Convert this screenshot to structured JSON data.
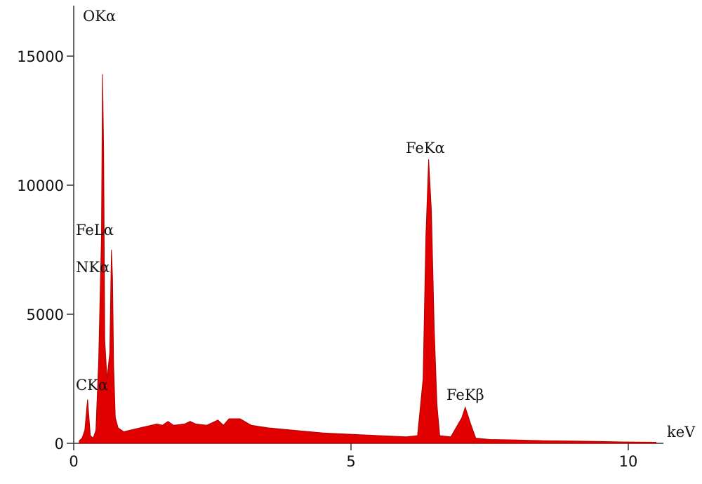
{
  "chart_data": {
    "type": "area",
    "color": "#e00000",
    "x": [
      0.1,
      0.15,
      0.2,
      0.25,
      0.3,
      0.35,
      0.4,
      0.45,
      0.5,
      0.52,
      0.54,
      0.56,
      0.6,
      0.65,
      0.68,
      0.7,
      0.72,
      0.75,
      0.8,
      0.9,
      1.0,
      1.2,
      1.4,
      1.5,
      1.6,
      1.7,
      1.8,
      2.0,
      2.1,
      2.2,
      2.4,
      2.6,
      2.7,
      2.8,
      3.0,
      3.2,
      3.5,
      4.0,
      4.5,
      5.0,
      5.5,
      6.0,
      6.2,
      6.3,
      6.35,
      6.4,
      6.45,
      6.5,
      6.55,
      6.6,
      6.8,
      7.0,
      7.06,
      7.15,
      7.25,
      7.5,
      8.0,
      8.5,
      9.0,
      9.5,
      10.0,
      10.5
    ],
    "values": [
      100,
      200,
      500,
      1700,
      300,
      200,
      500,
      3200,
      8000,
      14300,
      11300,
      4000,
      2500,
      3500,
      7500,
      6400,
      3000,
      1000,
      600,
      450,
      500,
      600,
      700,
      750,
      700,
      850,
      700,
      750,
      850,
      750,
      700,
      900,
      700,
      950,
      950,
      700,
      600,
      500,
      400,
      350,
      300,
      250,
      300,
      2500,
      8000,
      11000,
      9000,
      4500,
      1500,
      300,
      250,
      1000,
      1400,
      800,
      200,
      150,
      130,
      100,
      90,
      70,
      50,
      40
    ],
    "xlim": [
      0,
      10.65
    ],
    "ylim": [
      0,
      16900
    ],
    "xticks": [
      0,
      5,
      10
    ],
    "yticks": [
      0,
      5000,
      10000,
      15000
    ],
    "xlabel": "keV",
    "annotations": [
      "OKα",
      "FeLα",
      "NKα",
      "CKα",
      "FeKα",
      "FeKβ"
    ]
  }
}
